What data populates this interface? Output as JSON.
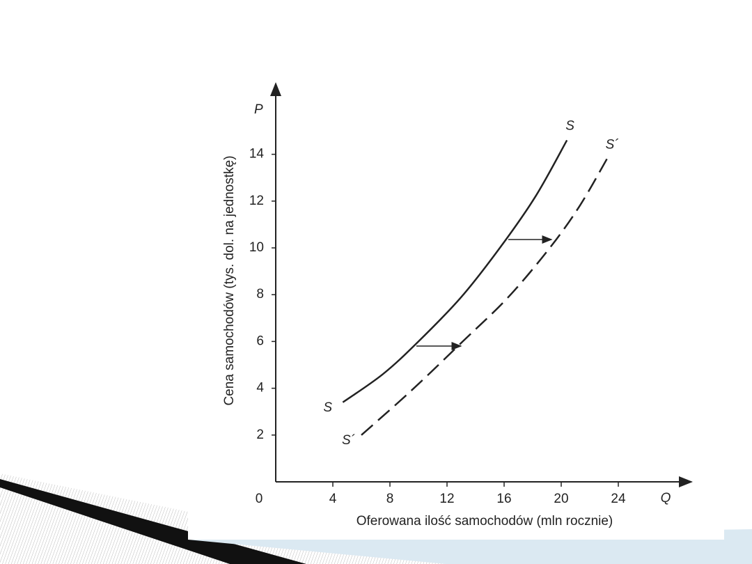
{
  "chart_data": {
    "type": "line",
    "x_label": "Oferowana ilość samochodów (mln rocznie)",
    "y_label": "Cena samochodów (tys. dol. na jednostkę)",
    "x_axis_symbol": "Q",
    "y_axis_symbol": "P",
    "xlim": [
      0,
      29
    ],
    "ylim": [
      0,
      17.1
    ],
    "xticks": [
      0,
      4,
      8,
      12,
      16,
      20,
      24
    ],
    "yticks": [
      2,
      4,
      6,
      8,
      10,
      12,
      14
    ],
    "series": [
      {
        "name": "S",
        "color": "#222222",
        "dashed": false,
        "x": [
          4.7,
          7.5,
          10,
          13,
          15.7,
          18.2,
          20.4
        ],
        "values": [
          3.4,
          4.6,
          6,
          7.9,
          10,
          12.2,
          14.6
        ]
      },
      {
        "name": "S´",
        "color": "#222222",
        "dashed": true,
        "x": [
          6,
          9.5,
          13.1,
          16.3,
          19.2,
          21.3,
          23.2
        ],
        "values": [
          2,
          3.9,
          6,
          7.9,
          10,
          11.8,
          13.8
        ]
      }
    ]
  }
}
